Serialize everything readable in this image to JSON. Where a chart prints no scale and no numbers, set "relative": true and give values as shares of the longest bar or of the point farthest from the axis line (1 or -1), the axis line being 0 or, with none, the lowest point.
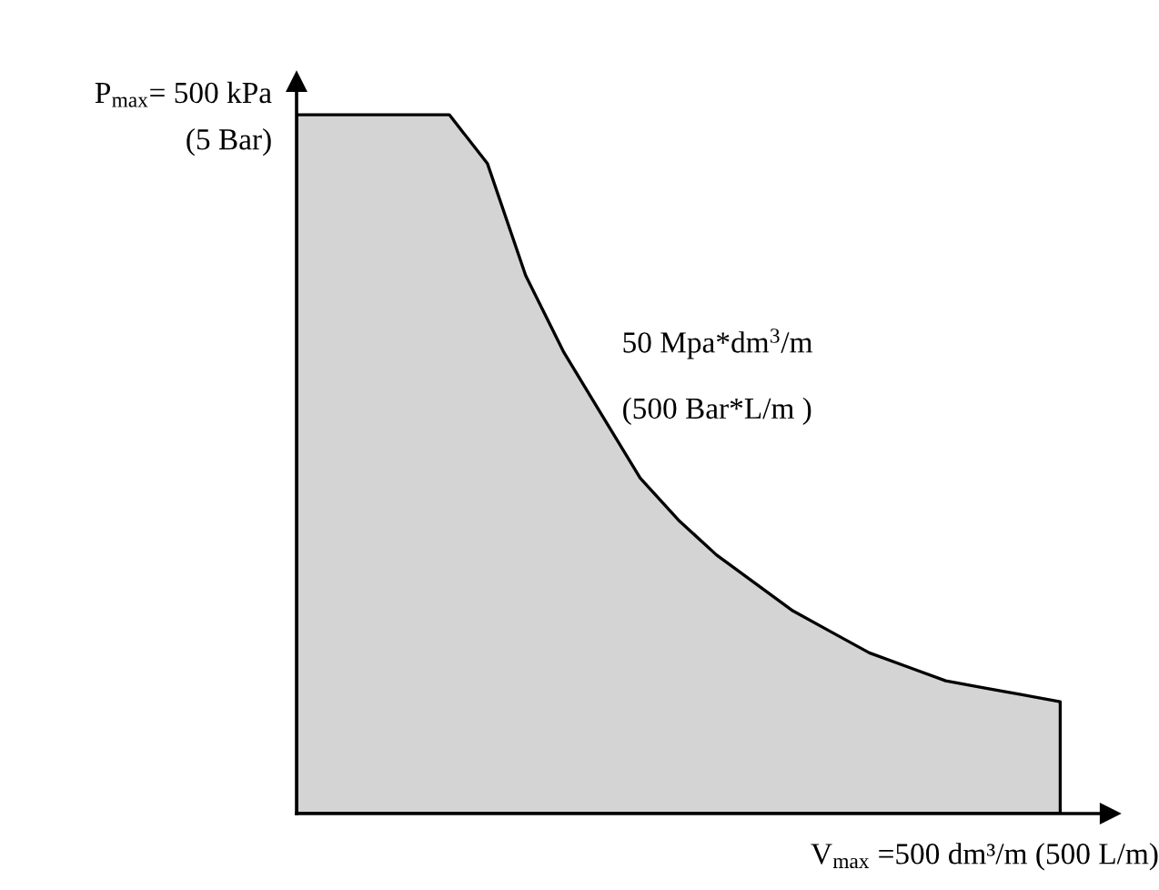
{
  "chart_data": {
    "type": "area",
    "relative": true,
    "categories": [
      null,
      null,
      null,
      null,
      null,
      null,
      null,
      null,
      null,
      null,
      null,
      null,
      null,
      null,
      null,
      null,
      null,
      null,
      null,
      null,
      null
    ],
    "series": [
      {
        "color": "#d4d4d4",
        "values": [
          1,
          1,
          1,
          1,
          1,
          0.93,
          0.77,
          0.66,
          0.57,
          0.48,
          0.42,
          0.37,
          0.33,
          0.29,
          0.26,
          0.23,
          0.21,
          0.19,
          0.18,
          0.17,
          0.16
        ]
      }
    ],
    "xlabel": "V$_{max}$ =500 dm³/m (500 L/m)",
    "ylabel": "P$_{max}$= 500 kPa\n(5 Bar)",
    "annotations": [
      "50 Mpa*dm$^{3}$/m",
      "(500 Bar*L/m )"
    ],
    "grid": false,
    "legend": false
  }
}
